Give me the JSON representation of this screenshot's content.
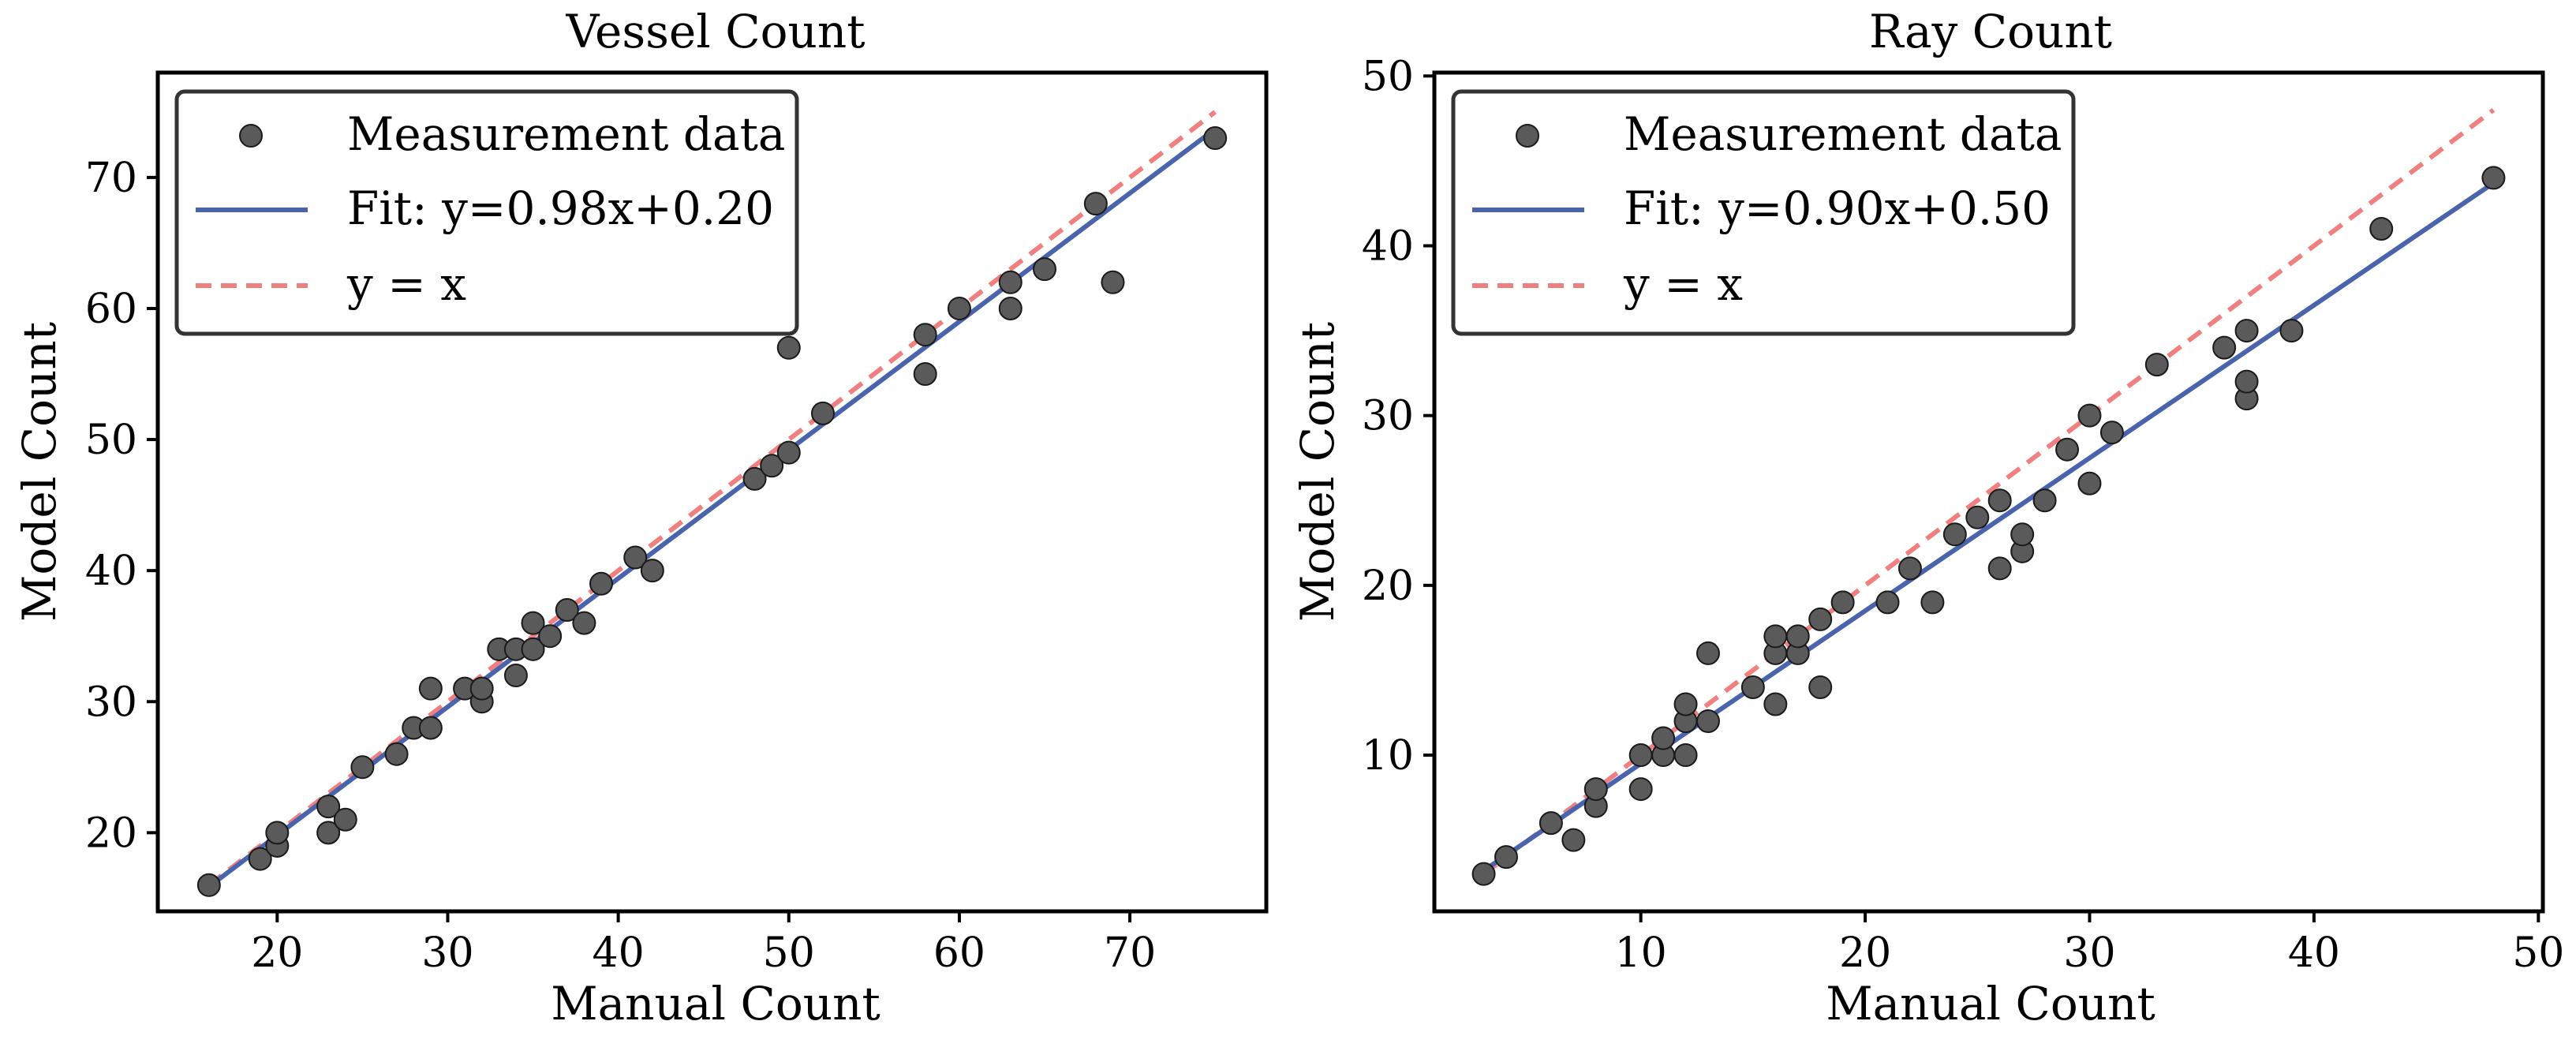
{
  "chart_data": [
    {
      "type": "scatter",
      "title": "Vessel Count",
      "xlabel": "Manual Count",
      "ylabel": "Model Count",
      "xlim": [
        13,
        78
      ],
      "ylim": [
        14,
        78
      ],
      "xticks": [
        20,
        30,
        40,
        50,
        60,
        70
      ],
      "yticks": [
        20,
        30,
        40,
        50,
        60,
        70
      ],
      "legend_position": "top-left",
      "legend": {
        "scatter_label": "Measurement data",
        "fit_label": "Fit: y=0.98x+0.20",
        "identity_label": "y = x"
      },
      "fit": {
        "slope": 0.98,
        "intercept": 0.2,
        "x_range": [
          16,
          75
        ]
      },
      "identity": {
        "x_range": [
          16,
          75
        ]
      },
      "points": [
        [
          16,
          16
        ],
        [
          19,
          18
        ],
        [
          20,
          19
        ],
        [
          20,
          20
        ],
        [
          23,
          20
        ],
        [
          23,
          22
        ],
        [
          24,
          21
        ],
        [
          25,
          25
        ],
        [
          27,
          26
        ],
        [
          28,
          28
        ],
        [
          29,
          28
        ],
        [
          29,
          31
        ],
        [
          31,
          31
        ],
        [
          32,
          30
        ],
        [
          32,
          31
        ],
        [
          33,
          34
        ],
        [
          34,
          32
        ],
        [
          34,
          34
        ],
        [
          35,
          34
        ],
        [
          35,
          36
        ],
        [
          36,
          35
        ],
        [
          37,
          37
        ],
        [
          38,
          36
        ],
        [
          39,
          39
        ],
        [
          41,
          41
        ],
        [
          42,
          40
        ],
        [
          48,
          47
        ],
        [
          49,
          48
        ],
        [
          50,
          49
        ],
        [
          50,
          57
        ],
        [
          52,
          52
        ],
        [
          58,
          55
        ],
        [
          58,
          58
        ],
        [
          60,
          60
        ],
        [
          63,
          60
        ],
        [
          63,
          62
        ],
        [
          65,
          63
        ],
        [
          68,
          68
        ],
        [
          69,
          62
        ],
        [
          75,
          73
        ]
      ]
    },
    {
      "type": "scatter",
      "title": "Ray Count",
      "xlabel": "Manual Count",
      "ylabel": "Model Count",
      "xlim": [
        0.8,
        50.2
      ],
      "ylim": [
        0.8,
        50.2
      ],
      "xticks": [
        10,
        20,
        30,
        40,
        50
      ],
      "yticks": [
        10,
        20,
        30,
        40,
        50
      ],
      "legend_position": "top-left",
      "legend": {
        "scatter_label": "Measurement data",
        "fit_label": "Fit: y=0.90x+0.50",
        "identity_label": "y = x"
      },
      "fit": {
        "slope": 0.9,
        "intercept": 0.5,
        "x_range": [
          3,
          48
        ]
      },
      "identity": {
        "x_range": [
          3,
          48
        ]
      },
      "points": [
        [
          3,
          3
        ],
        [
          4,
          4
        ],
        [
          6,
          6
        ],
        [
          7,
          5
        ],
        [
          8,
          7
        ],
        [
          8,
          8
        ],
        [
          10,
          8
        ],
        [
          10,
          10
        ],
        [
          11,
          10
        ],
        [
          11,
          11
        ],
        [
          12,
          10
        ],
        [
          12,
          12
        ],
        [
          12,
          13
        ],
        [
          13,
          12
        ],
        [
          13,
          16
        ],
        [
          15,
          14
        ],
        [
          16,
          13
        ],
        [
          16,
          16
        ],
        [
          16,
          17
        ],
        [
          17,
          16
        ],
        [
          17,
          17
        ],
        [
          18,
          14
        ],
        [
          18,
          18
        ],
        [
          19,
          19
        ],
        [
          21,
          19
        ],
        [
          22,
          21
        ],
        [
          23,
          19
        ],
        [
          24,
          23
        ],
        [
          25,
          24
        ],
        [
          26,
          21
        ],
        [
          26,
          25
        ],
        [
          27,
          22
        ],
        [
          27,
          23
        ],
        [
          28,
          25
        ],
        [
          29,
          28
        ],
        [
          30,
          26
        ],
        [
          30,
          30
        ],
        [
          31,
          29
        ],
        [
          33,
          33
        ],
        [
          36,
          34
        ],
        [
          37,
          31
        ],
        [
          37,
          32
        ],
        [
          37,
          35
        ],
        [
          39,
          35
        ],
        [
          43,
          41
        ],
        [
          48,
          44
        ]
      ]
    }
  ],
  "colors": {
    "point_fill": "#5a5a5a",
    "point_edge": "#1a1a1a",
    "fit_line": "#4a63ad",
    "identity_line": "#f08080",
    "axis": "#000000",
    "legend_border": "#333333"
  }
}
